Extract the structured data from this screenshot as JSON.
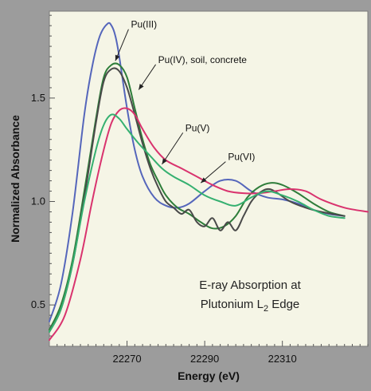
{
  "chart_data": {
    "type": "line",
    "title": "",
    "xlabel": "Energy (eV)",
    "ylabel": "Normalized Absorbance",
    "xlim": [
      22250,
      22332
    ],
    "ylim": [
      0.3,
      1.92
    ],
    "x_ticks": [
      22270,
      22290,
      22310
    ],
    "x_tick_labels": [
      "22270",
      "22290",
      "22310"
    ],
    "y_ticks": [
      0.5,
      1.0,
      1.5
    ],
    "y_tick_labels": [
      "0.5",
      "1.0",
      "1.5"
    ],
    "grid": false,
    "plot_background": "#f5f5e6",
    "figure_background": "#9c9c9c",
    "inset_text": {
      "line1": "E-ray Absorption at",
      "line2_prefix": "Plutonium L",
      "line2_subscript": "2",
      "line2_suffix": " Edge"
    },
    "annotations": [
      {
        "text": "Pu(III)",
        "x": 22271,
        "y": 1.84,
        "arrow_to": [
          22267,
          1.68
        ]
      },
      {
        "text": "Pu(IV), soil, concrete",
        "x": 22278,
        "y": 1.67,
        "arrow_to": [
          22273,
          1.54
        ]
      },
      {
        "text": "Pu(V)",
        "x": 22285,
        "y": 1.34,
        "arrow_to": [
          22279,
          1.18
        ]
      },
      {
        "text": "Pu(VI)",
        "x": 22296,
        "y": 1.2,
        "arrow_to": [
          22289,
          1.09
        ]
      }
    ],
    "series": [
      {
        "color": "#5566bb",
        "x": [
          22250,
          22253,
          22256,
          22259,
          22261,
          22263,
          22265,
          22266,
          22267,
          22268,
          22270,
          22272,
          22274,
          22277,
          22280,
          22283,
          22286,
          22290,
          22294,
          22298,
          22302,
          22306,
          22310,
          22314,
          22318,
          22322,
          22326
        ],
        "y": [
          0.42,
          0.6,
          0.95,
          1.42,
          1.65,
          1.8,
          1.86,
          1.85,
          1.8,
          1.7,
          1.45,
          1.25,
          1.12,
          1.02,
          0.98,
          0.97,
          0.99,
          1.05,
          1.1,
          1.1,
          1.05,
          1.02,
          1.01,
          0.99,
          0.96,
          0.94,
          0.93
        ]
      },
      {
        "color": "#2e7d3a",
        "x": [
          22250,
          22253,
          22256,
          22259,
          22262,
          22264,
          22266,
          22268,
          22270,
          22272,
          22274,
          22276,
          22278,
          22280,
          22283,
          22286,
          22289,
          22292,
          22295,
          22298,
          22301,
          22304,
          22307,
          22310,
          22314,
          22318,
          22322,
          22326
        ],
        "y": [
          0.38,
          0.5,
          0.72,
          1.05,
          1.4,
          1.6,
          1.66,
          1.66,
          1.6,
          1.45,
          1.3,
          1.18,
          1.1,
          1.03,
          0.97,
          0.94,
          0.9,
          0.87,
          0.88,
          0.93,
          1.02,
          1.07,
          1.09,
          1.08,
          1.04,
          0.99,
          0.95,
          0.93
        ]
      },
      {
        "color": "#4a4a4a",
        "x": [
          22250,
          22253,
          22256,
          22259,
          22262,
          22264,
          22266,
          22268,
          22270,
          22272,
          22274,
          22276,
          22278,
          22280,
          22282,
          22284,
          22286,
          22288,
          22290,
          22292,
          22294,
          22296,
          22298,
          22300,
          22302,
          22304,
          22306,
          22308,
          22312,
          22316,
          22320,
          22326
        ],
        "y": [
          0.37,
          0.48,
          0.7,
          1.02,
          1.38,
          1.58,
          1.64,
          1.63,
          1.55,
          1.42,
          1.28,
          1.16,
          1.07,
          1.0,
          0.97,
          0.94,
          0.96,
          0.9,
          0.88,
          0.92,
          0.86,
          0.9,
          0.86,
          0.93,
          1.0,
          1.04,
          1.06,
          1.05,
          1.0,
          0.97,
          0.95,
          0.93
        ]
      },
      {
        "color": "#d9336e",
        "x": [
          22250,
          22254,
          22258,
          22261,
          22264,
          22266,
          22268,
          22270,
          22272,
          22274,
          22277,
          22280,
          22284,
          22288,
          22292,
          22296,
          22300,
          22304,
          22308,
          22312,
          22316,
          22320,
          22326,
          22332
        ],
        "y": [
          0.33,
          0.45,
          0.72,
          1.0,
          1.25,
          1.38,
          1.44,
          1.45,
          1.42,
          1.35,
          1.26,
          1.2,
          1.16,
          1.12,
          1.08,
          1.05,
          1.04,
          1.04,
          1.05,
          1.06,
          1.05,
          1.01,
          0.97,
          0.95
        ]
      },
      {
        "color": "#35b070",
        "x": [
          22250,
          22253,
          22256,
          22259,
          22262,
          22264,
          22266,
          22268,
          22270,
          22273,
          22276,
          22279,
          22282,
          22286,
          22290,
          22294,
          22298,
          22302,
          22306,
          22310,
          22314,
          22318,
          22322,
          22326
        ],
        "y": [
          0.37,
          0.48,
          0.7,
          1.0,
          1.25,
          1.37,
          1.42,
          1.4,
          1.35,
          1.28,
          1.22,
          1.16,
          1.12,
          1.08,
          1.03,
          1.0,
          0.98,
          1.02,
          1.05,
          1.03,
          1.0,
          0.96,
          0.93,
          0.92
        ]
      }
    ]
  }
}
